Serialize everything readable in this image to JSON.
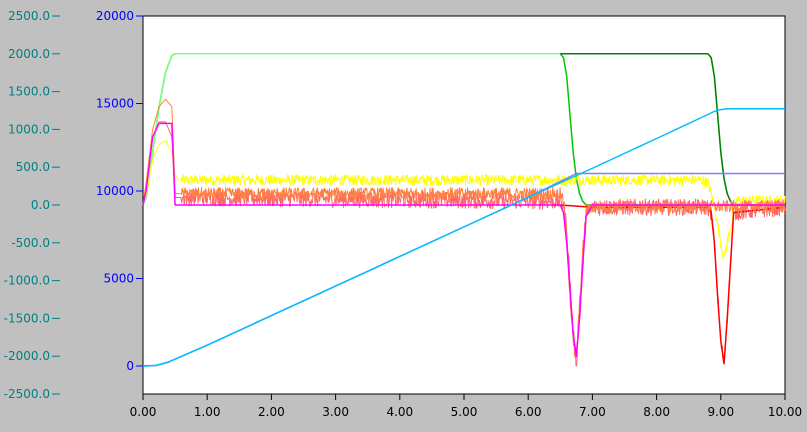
{
  "chart_data": {
    "type": "line",
    "xlim": [
      0,
      10
    ],
    "x_ticks": [
      "0.00",
      "1.00",
      "2.00",
      "3.00",
      "4.00",
      "5.00",
      "6.00",
      "7.00",
      "8.00",
      "9.00",
      "10.00"
    ],
    "y_left": {
      "range": [
        -2500,
        2500
      ],
      "ticks": [
        "2500.0",
        "2000.0",
        "1500.0",
        "1000.0",
        "500.0",
        "0.0",
        "-500.0",
        "-1000.0",
        "-1500.0",
        "-2000.0",
        "-2500.0"
      ],
      "tick_values": [
        2500,
        2000,
        1500,
        1000,
        500,
        0,
        -500,
        -1000,
        -1500,
        -2000,
        -2500
      ],
      "color": "#008080"
    },
    "y_right": {
      "range": [
        -1600,
        20000
      ],
      "ticks": [
        "20000",
        "15000",
        "10000",
        "5000",
        "0"
      ],
      "tick_values": [
        20000,
        15000,
        10000,
        5000,
        0
      ],
      "color": "#0000ff"
    },
    "grid": false,
    "plot_background": "#ffffff",
    "series": [
      {
        "color": "#00c800",
        "axis": "left",
        "noise": 0,
        "x": [
          0,
          0.05,
          0.15,
          0.25,
          0.35,
          0.45,
          0.5,
          6.5,
          6.55,
          6.6,
          6.65,
          6.7,
          6.75,
          6.8,
          6.85,
          6.9,
          10
        ],
        "y": [
          0,
          100,
          700,
          1300,
          1750,
          1980,
          2000,
          2000,
          1950,
          1700,
          1200,
          700,
          350,
          150,
          50,
          0,
          0
        ]
      },
      {
        "color": "#80ff80",
        "axis": "left",
        "noise": 0,
        "x": [
          0,
          0.05,
          0.15,
          0.25,
          0.35,
          0.45,
          0.5,
          8.8,
          8.85,
          8.9,
          8.95,
          9.0,
          9.05,
          9.1,
          9.15,
          9.2,
          10
        ],
        "y": [
          0,
          100,
          700,
          1300,
          1750,
          1980,
          2000,
          2000,
          1950,
          1700,
          1200,
          700,
          350,
          150,
          50,
          0,
          0
        ]
      },
      {
        "color": "#008000",
        "axis": "left",
        "noise": 0,
        "x": [
          6.5,
          8.8,
          8.85,
          8.9,
          8.95,
          9.0,
          9.05,
          9.1,
          9.15,
          9.2,
          10
        ],
        "y": [
          2000,
          2000,
          1950,
          1700,
          1200,
          700,
          350,
          150,
          50,
          0,
          0
        ]
      },
      {
        "color": "#ffff00",
        "axis": "left",
        "noise": 70,
        "x": [
          0,
          0.05,
          0.15,
          0.25,
          0.35,
          0.45,
          0.5,
          0.55,
          8.7,
          8.8,
          8.9,
          9.0,
          9.05,
          9.1,
          9.2,
          9.25,
          10
        ],
        "y": [
          0,
          150,
          600,
          800,
          850,
          700,
          400,
          330,
          330,
          300,
          0,
          -500,
          -700,
          -500,
          -100,
          60,
          60
        ]
      },
      {
        "color": "#ff6666",
        "axis": "left",
        "noise": 110,
        "x": [
          0,
          0.05,
          0.15,
          0.25,
          0.35,
          0.45,
          0.5,
          6.5,
          6.55,
          6.6,
          6.65,
          6.7,
          6.75,
          6.8,
          6.85,
          6.9,
          7.0,
          8.8,
          8.85,
          8.9,
          8.95,
          9.0,
          9.05,
          9.1,
          9.15,
          9.2,
          10
        ],
        "y": [
          0,
          250,
          900,
          1100,
          1100,
          900,
          100,
          50,
          0,
          -300,
          -1000,
          -1700,
          -2100,
          -1500,
          -800,
          -150,
          -30,
          -30,
          -100,
          -500,
          -1200,
          -1800,
          -2100,
          -1500,
          -800,
          -100,
          -30
        ]
      },
      {
        "color": "#ff0000",
        "axis": "left",
        "noise": 0,
        "x": [
          6.5,
          7.0,
          8.8,
          8.85,
          8.9,
          8.95,
          9.0,
          9.05,
          9.1,
          9.15,
          9.2,
          10
        ],
        "y": [
          0,
          -30,
          -30,
          -100,
          -500,
          -1200,
          -1800,
          -2100,
          -1500,
          -800,
          -100,
          -30
        ]
      },
      {
        "color": "#ff8040",
        "axis": "left",
        "noise": 80,
        "x": [
          0,
          0.05,
          0.15,
          0.25,
          0.35,
          0.45,
          0.5,
          6.5,
          6.55,
          6.6,
          6.65,
          6.7,
          6.75,
          6.8,
          6.85,
          6.9,
          7.0,
          8.8,
          9.0,
          10
        ],
        "y": [
          0,
          300,
          1000,
          1300,
          1400,
          1300,
          150,
          150,
          50,
          -400,
          -1200,
          -1800,
          -2000,
          -1300,
          -600,
          -100,
          -20,
          -20,
          -20,
          -20
        ]
      },
      {
        "color": "#ff00ff",
        "axis": "left",
        "noise": 0,
        "x": [
          0,
          0.05,
          0.15,
          0.25,
          0.3,
          0.45,
          0.5,
          6.5,
          6.55,
          6.6,
          6.65,
          6.7,
          6.75,
          6.8,
          6.85,
          6.9,
          7.0,
          10
        ],
        "y": [
          0,
          200,
          900,
          1080,
          1080,
          1080,
          0,
          0,
          -100,
          -500,
          -1100,
          -1700,
          -2000,
          -1500,
          -800,
          -150,
          0,
          0
        ]
      },
      {
        "color": "#8080ff",
        "axis": "right",
        "noise": 0,
        "x": [
          0,
          0.2,
          0.4,
          1,
          2,
          3,
          4,
          5,
          6,
          6.75,
          10
        ],
        "y": [
          0,
          30,
          230,
          1190,
          2880,
          4570,
          6260,
          7950,
          9640,
          11000,
          11000
        ]
      },
      {
        "color": "#00bfff",
        "axis": "right",
        "noise": 0,
        "x": [
          0,
          0.2,
          0.4,
          1,
          2,
          3,
          4,
          5,
          6,
          7,
          8,
          8.7,
          8.9,
          9.0,
          9.1,
          10
        ],
        "y": [
          0,
          30,
          230,
          1190,
          2880,
          4570,
          6260,
          7950,
          9640,
          11300,
          13000,
          14200,
          14550,
          14650,
          14700,
          14700
        ]
      }
    ]
  }
}
